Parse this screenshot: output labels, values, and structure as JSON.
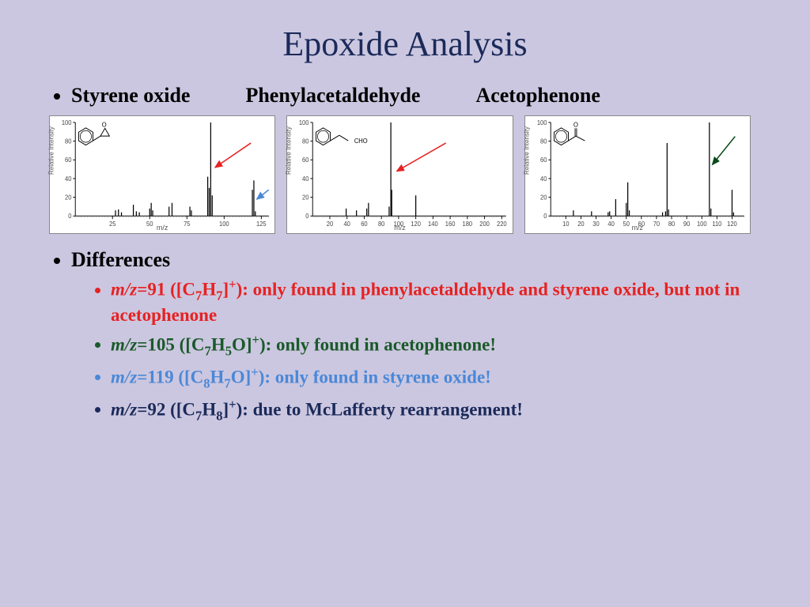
{
  "title": "Epoxide Analysis",
  "compounds": [
    "Styrene oxide",
    "Phenylacetaldehyde",
    "Acetophenone"
  ],
  "differences_label": "Differences",
  "diff_items": [
    {
      "mz": "91",
      "formula": "C7H7",
      "note": "only found in phenylacetaldehyde and styrene oxide, but not in acetophenone",
      "color": "#e62222"
    },
    {
      "mz": "105",
      "formula": "C7H5O",
      "note": "only  found in acetophenone!",
      "color": "#1a5a2a"
    },
    {
      "mz": "119",
      "formula": "C8H7O",
      "note": "only found in styrene oxide!",
      "color": "#4a88d8"
    },
    {
      "mz": "92",
      "formula": "C7H8",
      "note": "due to McLafferty rearrangement!",
      "color": "#1a2a5a"
    }
  ],
  "spectra": {
    "type": "mass-spectrum-panel",
    "panel_count": 3,
    "background_color": "#ffffff",
    "border_color": "#888888",
    "axis_color": "#000000",
    "tick_color": "#000000",
    "peak_color": "#000000",
    "ylabel": "Relative Intensity",
    "xlabel": "m/z",
    "label_fontsize": 8,
    "tick_fontsize": 8,
    "ylim": [
      0,
      100
    ],
    "ytick_step": 20,
    "panels": [
      {
        "name": "styrene-oxide",
        "xlim": [
          0,
          130
        ],
        "xtick_step": 25,
        "peaks": [
          {
            "mz": 27,
            "intensity": 6
          },
          {
            "mz": 29,
            "intensity": 7
          },
          {
            "mz": 31,
            "intensity": 4
          },
          {
            "mz": 39,
            "intensity": 12
          },
          {
            "mz": 41,
            "intensity": 5
          },
          {
            "mz": 43,
            "intensity": 4
          },
          {
            "mz": 50,
            "intensity": 8
          },
          {
            "mz": 51,
            "intensity": 14
          },
          {
            "mz": 52,
            "intensity": 6
          },
          {
            "mz": 63,
            "intensity": 10
          },
          {
            "mz": 65,
            "intensity": 14
          },
          {
            "mz": 77,
            "intensity": 10
          },
          {
            "mz": 78,
            "intensity": 6
          },
          {
            "mz": 89,
            "intensity": 42
          },
          {
            "mz": 90,
            "intensity": 30
          },
          {
            "mz": 91,
            "intensity": 100
          },
          {
            "mz": 92,
            "intensity": 22
          },
          {
            "mz": 119,
            "intensity": 28
          },
          {
            "mz": 120,
            "intensity": 38
          },
          {
            "mz": 121,
            "intensity": 5
          }
        ],
        "arrows": [
          {
            "color": "#e62222",
            "from": [
              118,
              78
            ],
            "to": [
              94,
              52
            ]
          },
          {
            "color": "#4a88d8",
            "from": [
              130,
              28
            ],
            "to": [
              122,
              18
            ]
          }
        ],
        "structure": "styrene-oxide"
      },
      {
        "name": "phenylacetaldehyde",
        "xlim": [
          0,
          225
        ],
        "xtick_step": 20,
        "peaks": [
          {
            "mz": 39,
            "intensity": 8
          },
          {
            "mz": 51,
            "intensity": 6
          },
          {
            "mz": 63,
            "intensity": 8
          },
          {
            "mz": 65,
            "intensity": 14
          },
          {
            "mz": 89,
            "intensity": 10
          },
          {
            "mz": 91,
            "intensity": 100
          },
          {
            "mz": 92,
            "intensity": 28
          },
          {
            "mz": 120,
            "intensity": 22
          }
        ],
        "arrows": [
          {
            "color": "#e62222",
            "from": [
              155,
              78
            ],
            "to": [
              98,
              48
            ]
          }
        ],
        "structure": "phenylacetaldehyde"
      },
      {
        "name": "acetophenone",
        "xlim": [
          0,
          128
        ],
        "xtick_step": 10,
        "peaks": [
          {
            "mz": 15,
            "intensity": 6
          },
          {
            "mz": 27,
            "intensity": 5
          },
          {
            "mz": 38,
            "intensity": 4
          },
          {
            "mz": 39,
            "intensity": 5
          },
          {
            "mz": 43,
            "intensity": 18
          },
          {
            "mz": 50,
            "intensity": 14
          },
          {
            "mz": 51,
            "intensity": 36
          },
          {
            "mz": 52,
            "intensity": 6
          },
          {
            "mz": 74,
            "intensity": 4
          },
          {
            "mz": 76,
            "intensity": 5
          },
          {
            "mz": 77,
            "intensity": 78
          },
          {
            "mz": 78,
            "intensity": 7
          },
          {
            "mz": 105,
            "intensity": 100
          },
          {
            "mz": 106,
            "intensity": 8
          },
          {
            "mz": 120,
            "intensity": 28
          },
          {
            "mz": 121,
            "intensity": 4
          }
        ],
        "arrows": [
          {
            "color": "#0a4a1a",
            "from": [
              122,
              85
            ],
            "to": [
              107,
              55
            ]
          }
        ],
        "structure": "acetophenone"
      }
    ]
  }
}
